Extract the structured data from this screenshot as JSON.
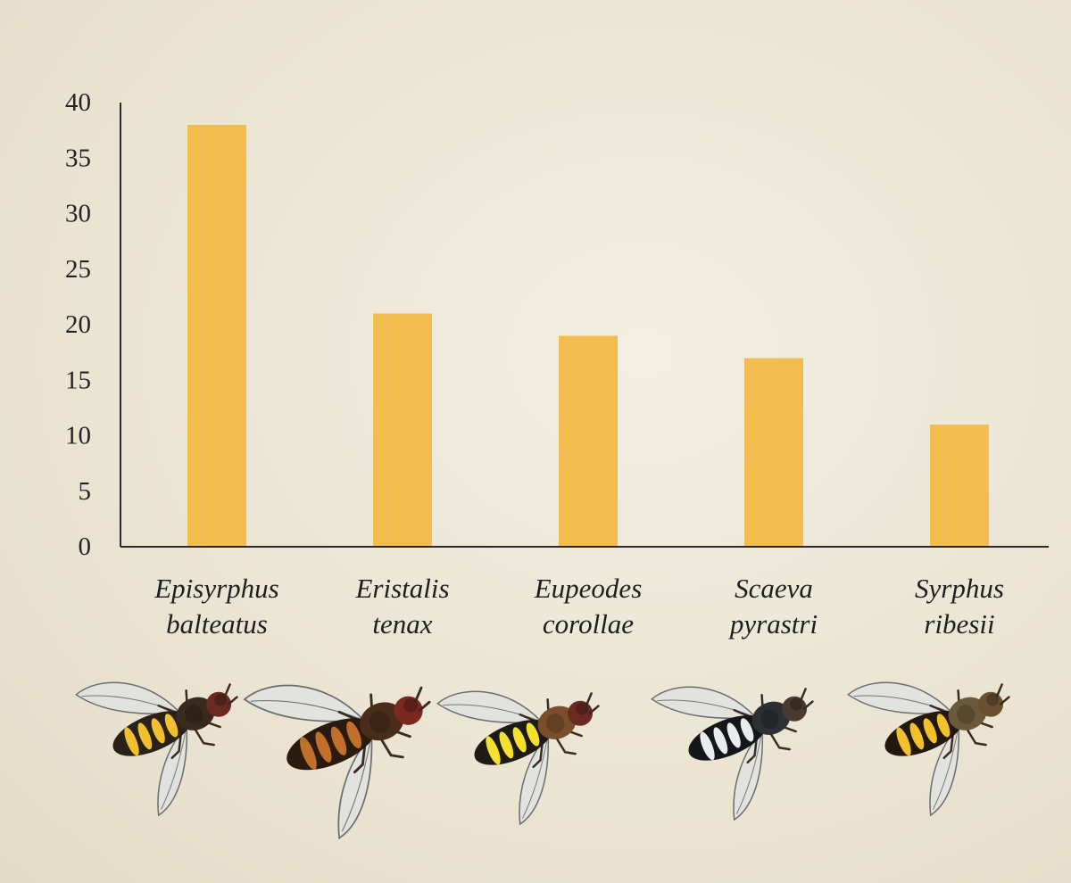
{
  "chart_data": {
    "type": "bar",
    "title": "",
    "xlabel": "",
    "ylabel": "",
    "ylim": [
      0,
      40
    ],
    "yticks": [
      0,
      5,
      10,
      15,
      20,
      25,
      30,
      35,
      40
    ],
    "grid": false,
    "legend": "none",
    "bar_color": "#f2bd4e",
    "categories": [
      [
        "Episyrphus",
        "balteatus"
      ],
      [
        "Eristalis",
        "tenax"
      ],
      [
        "Eupeodes",
        "corollae"
      ],
      [
        "Scaeva",
        "pyrastri"
      ],
      [
        "Syrphus",
        "ribesii"
      ]
    ],
    "values": [
      38,
      21,
      19,
      17,
      11
    ]
  },
  "illustrations": [
    {
      "icon": "hoverfly-episyrphus-balteatus-icon",
      "abdomen": "#2a2218",
      "band": "#f0c030",
      "thorax": "#3a2a1e",
      "head": "#6a2a22"
    },
    {
      "icon": "hoverfly-eristalis-tenax-icon",
      "abdomen": "#2b1a10",
      "band": "#c0702a",
      "thorax": "#4a2c1a",
      "head": "#7a2a20"
    },
    {
      "icon": "hoverfly-eupeodes-corollae-icon",
      "abdomen": "#1e1a14",
      "band": "#f5e030",
      "thorax": "#7a4e2a",
      "head": "#6a2a22"
    },
    {
      "icon": "hoverfly-scaeva-pyrastri-icon",
      "abdomen": "#15161a",
      "band": "#e8ecee",
      "thorax": "#2c2f33",
      "head": "#4a3a30"
    },
    {
      "icon": "hoverfly-syrphus-ribesii-icon",
      "abdomen": "#22180e",
      "band": "#f2c02a",
      "thorax": "#6a5a3a",
      "head": "#6a5030"
    }
  ]
}
